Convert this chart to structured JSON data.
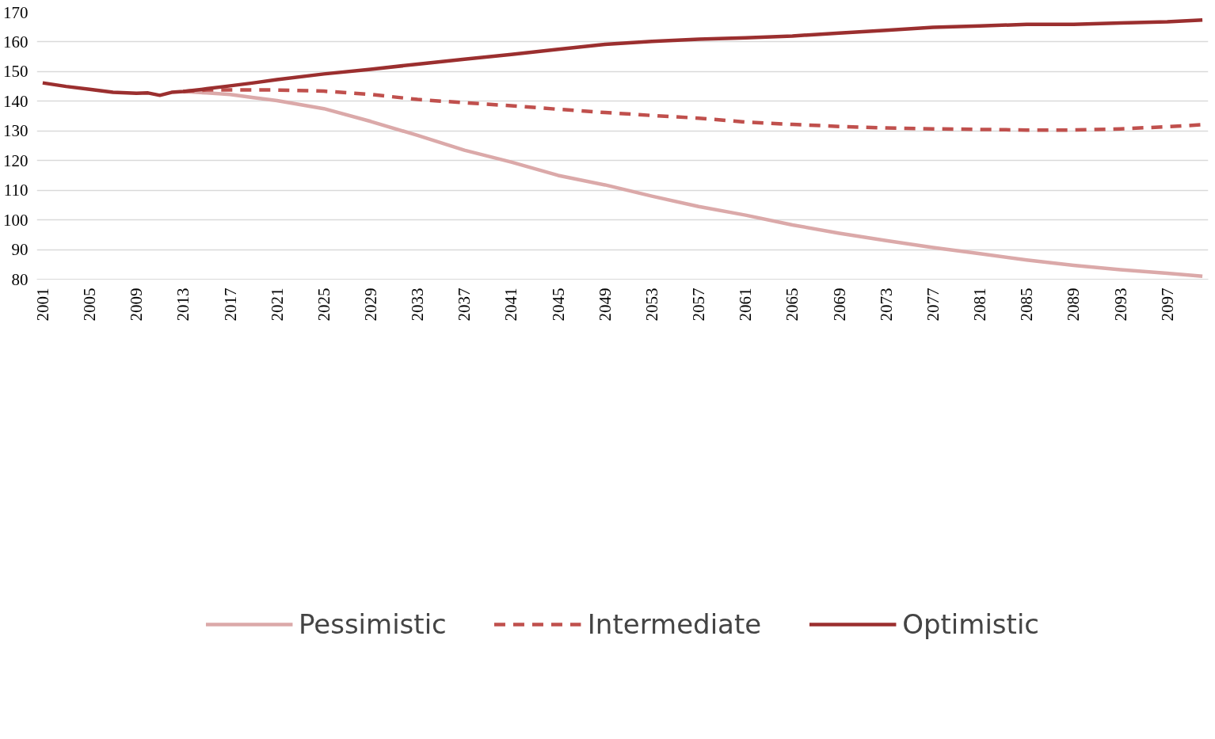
{
  "chart_data": {
    "type": "line",
    "xlim": [
      2000.5,
      2100.5
    ],
    "xticks": [
      2001,
      2005,
      2009,
      2013,
      2017,
      2021,
      2025,
      2029,
      2033,
      2037,
      2041,
      2045,
      2049,
      2053,
      2057,
      2061,
      2065,
      2069,
      2073,
      2077,
      2081,
      2085,
      2089,
      2093,
      2097
    ],
    "ylim": [
      80,
      170
    ],
    "yticks": [
      80,
      90,
      100,
      110,
      120,
      130,
      140,
      150,
      160,
      170
    ],
    "grid": "y",
    "legend": "bottom",
    "marker": "none",
    "series": [
      {
        "name": "Pessimistic",
        "color": "#dba9a9",
        "line_style": "solid",
        "x": [
          2013,
          2015,
          2017,
          2019,
          2021,
          2025,
          2029,
          2033,
          2037,
          2041,
          2045,
          2049,
          2053,
          2057,
          2061,
          2065,
          2069,
          2073,
          2077,
          2081,
          2085,
          2089,
          2093,
          2097,
          2100
        ],
        "values": [
          143.3,
          142.8,
          142.3,
          141.2,
          140.2,
          137.5,
          133.2,
          128.5,
          123.5,
          119.5,
          115,
          111.8,
          108,
          104.5,
          101.6,
          98.3,
          95.5,
          93,
          90.7,
          88.6,
          86.5,
          84.7,
          83.2,
          82,
          81
        ]
      },
      {
        "name": "Intermediate",
        "color": "#c0504d",
        "line_style": "dashed",
        "x": [
          2013,
          2015,
          2021,
          2025,
          2029,
          2033,
          2037,
          2041,
          2045,
          2049,
          2053,
          2057,
          2061,
          2065,
          2069,
          2073,
          2077,
          2081,
          2085,
          2089,
          2093,
          2097,
          2100
        ],
        "values": [
          143.3,
          143.8,
          143.8,
          143.4,
          142.3,
          140.6,
          139.5,
          138.5,
          137.3,
          136.2,
          135.2,
          134.3,
          133,
          132.2,
          131.5,
          131,
          130.7,
          130.5,
          130.3,
          130.3,
          130.7,
          131.4,
          132.1
        ]
      },
      {
        "name": "Optimistic",
        "color": "#9b2f2f",
        "line_style": "solid",
        "x": [
          2001,
          2003,
          2005,
          2007,
          2009,
          2010,
          2011,
          2012,
          2013,
          2015,
          2017,
          2019,
          2021,
          2025,
          2029,
          2033,
          2037,
          2041,
          2045,
          2049,
          2053,
          2057,
          2061,
          2065,
          2069,
          2073,
          2077,
          2081,
          2085,
          2089,
          2093,
          2097,
          2100
        ],
        "values": [
          146.2,
          145,
          144,
          143,
          142.7,
          142.8,
          142,
          143,
          143.3,
          144.2,
          145.2,
          146.2,
          147.3,
          149.2,
          150.8,
          152.5,
          154.2,
          155.8,
          157.5,
          159.2,
          160.2,
          160.9,
          161.4,
          162,
          163,
          163.9,
          164.9,
          165.4,
          165.9,
          165.9,
          166.4,
          166.8,
          167.4
        ]
      }
    ]
  }
}
